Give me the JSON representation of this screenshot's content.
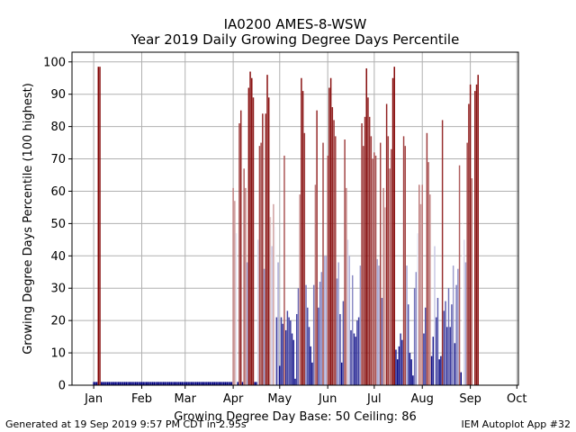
{
  "chart_data": {
    "type": "bar",
    "title": "IA0200 AMES-8-WSW",
    "subtitle": "Year 2019 Daily Growing Degree Days Percentile",
    "xlabel": "Growing Degree Day Base: 50 Ceiling: 86",
    "ylabel": "Growing Degree Days Percentile (100 highest)",
    "ylim": [
      0,
      103
    ],
    "yticks": [
      0,
      10,
      20,
      30,
      40,
      50,
      60,
      70,
      80,
      90,
      100
    ],
    "xlim_days": [
      -14,
      274
    ],
    "xticks": [
      {
        "label": "Jan",
        "day": 0
      },
      {
        "label": "Feb",
        "day": 31
      },
      {
        "label": "Mar",
        "day": 59
      },
      {
        "label": "Apr",
        "day": 90
      },
      {
        "label": "May",
        "day": 120
      },
      {
        "label": "Jun",
        "day": 151
      },
      {
        "label": "Jul",
        "day": 181
      },
      {
        "label": "Aug",
        "day": 212
      },
      {
        "label": "Sep",
        "day": 243
      },
      {
        "label": "Oct",
        "day": 273
      }
    ],
    "grid": true,
    "color_scale": {
      "low": "#000080",
      "mid": "#ffffff",
      "high": "#800000"
    },
    "start_date": "2019-01-01",
    "values": [
      1,
      1,
      1,
      98.5,
      98.5,
      1,
      1,
      1,
      1,
      1,
      1,
      1,
      1,
      1,
      1,
      1,
      1,
      1,
      1,
      1,
      1,
      1,
      1,
      1,
      1,
      1,
      1,
      1,
      1,
      1,
      1,
      1,
      1,
      1,
      1,
      1,
      1,
      1,
      1,
      1,
      1,
      1,
      1,
      1,
      1,
      1,
      1,
      1,
      1,
      1,
      1,
      1,
      1,
      1,
      1,
      1,
      1,
      1,
      1,
      1,
      1,
      1,
      1,
      1,
      1,
      1,
      1,
      1,
      1,
      1,
      1,
      1,
      1,
      1,
      1,
      1,
      1,
      1,
      1,
      1,
      1,
      1,
      1,
      1,
      1,
      1,
      1,
      1,
      1,
      1,
      61,
      57,
      47,
      1,
      81,
      85,
      1,
      67,
      61,
      38,
      92,
      97,
      95,
      89,
      1,
      1,
      45,
      74,
      75,
      84,
      36,
      84,
      96,
      89,
      52,
      43,
      56,
      49,
      21,
      38,
      6,
      21,
      19,
      71,
      17,
      23,
      21,
      20,
      16,
      14,
      2,
      22,
      30,
      59,
      95,
      91,
      78,
      31,
      24,
      18,
      12,
      7,
      31,
      62,
      85,
      24,
      32,
      35,
      75,
      40,
      40,
      71,
      92,
      95,
      86,
      82,
      77,
      33,
      38,
      22,
      7,
      26,
      76,
      61,
      45,
      40,
      17,
      34,
      16,
      15,
      20,
      21,
      37,
      81,
      74,
      83,
      98,
      89,
      83,
      77,
      70,
      72,
      71,
      39,
      37,
      75,
      27,
      61,
      55,
      87,
      77,
      67,
      73,
      95,
      98.5,
      11,
      8,
      12,
      16,
      14,
      77,
      74,
      37,
      25,
      10,
      8,
      3,
      30,
      35,
      47,
      62,
      56,
      62,
      16,
      24,
      78,
      69,
      59,
      9,
      15,
      43,
      21,
      27,
      8,
      9,
      82,
      23,
      26,
      18,
      30,
      18,
      25,
      37,
      13,
      31,
      36,
      68,
      4,
      50,
      45,
      38,
      75,
      87,
      93,
      64,
      50,
      91,
      93,
      96
    ]
  },
  "footer": {
    "left": "Generated at 19 Sep 2019 9:57 PM CDT in 2.95s",
    "right": "IEM Autoplot App #32"
  }
}
